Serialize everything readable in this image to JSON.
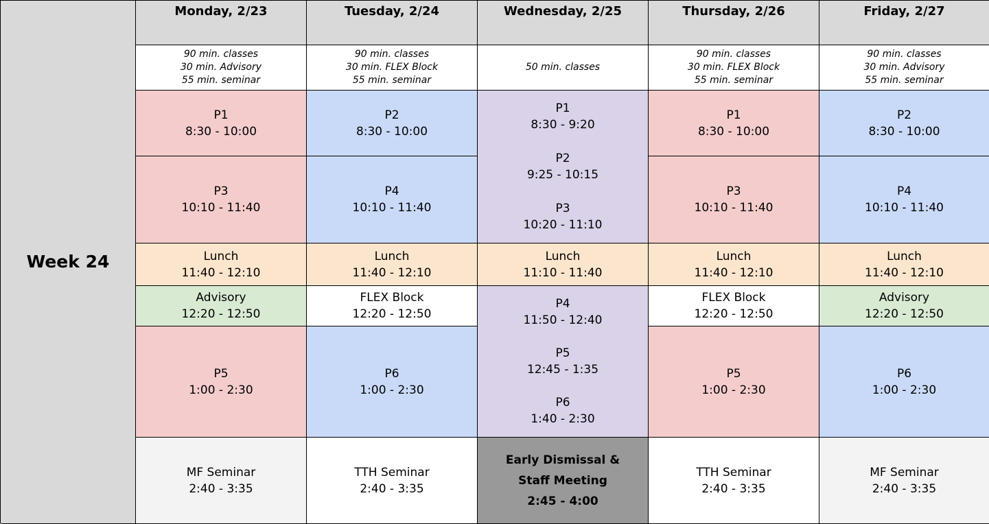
{
  "week_label": "Week 24",
  "days": [
    {
      "header": "Monday, 2/23",
      "notes": [
        "90 min. classes",
        "30 min. Advisory",
        "55 min. seminar"
      ]
    },
    {
      "header": "Tuesday, 2/24",
      "notes": [
        "90 min. classes",
        "30 min. FLEX Block",
        "55 min. seminar"
      ]
    },
    {
      "header": "Wednesday, 2/25",
      "notes": [
        "50 min. classes"
      ]
    },
    {
      "header": "Thursday, 2/26",
      "notes": [
        "90 min. classes",
        "30 min. FLEX Block",
        "55 min. seminar"
      ]
    },
    {
      "header": "Friday, 2/27",
      "notes": [
        "90 min. classes",
        "30 min. Advisory",
        "55 min. seminar"
      ]
    }
  ],
  "monday": {
    "p1": {
      "name": "P1",
      "time": "8:30 - 10:00"
    },
    "p3": {
      "name": "P3",
      "time": "10:10 - 11:40"
    },
    "lunch": {
      "name": "Lunch",
      "time": "11:40 - 12:10"
    },
    "mid": {
      "name": "Advisory",
      "time": "12:20 - 12:50"
    },
    "p5": {
      "name": "P5",
      "time": "1:00 - 2:30"
    },
    "seminar": {
      "name": "MF Seminar",
      "time": "2:40 - 3:35"
    }
  },
  "tuesday": {
    "p2": {
      "name": "P2",
      "time": "8:30 - 10:00"
    },
    "p4": {
      "name": "P4",
      "time": "10:10 - 11:40"
    },
    "lunch": {
      "name": "Lunch",
      "time": "11:40 - 12:10"
    },
    "mid": {
      "name": "FLEX Block",
      "time": "12:20 - 12:50"
    },
    "p6": {
      "name": "P6",
      "time": "1:00 - 2:30"
    },
    "seminar": {
      "name": "TTH Seminar",
      "time": "2:40 - 3:35"
    }
  },
  "wednesday": {
    "morning": [
      {
        "name": "P1",
        "time": "8:30 - 9:20"
      },
      {
        "name": "P2",
        "time": "9:25 - 10:15"
      },
      {
        "name": "P3",
        "time": "10:20 - 11:10"
      }
    ],
    "lunch": {
      "name": "Lunch",
      "time": "11:10 - 11:40"
    },
    "afternoon": [
      {
        "name": "P4",
        "time": "11:50 - 12:40"
      },
      {
        "name": "P5",
        "time": "12:45 - 1:35"
      },
      {
        "name": "P6",
        "time": "1:40 - 2:30"
      }
    ],
    "dismissal": {
      "line1": "Early Dismissal &",
      "line2": "Staff Meeting",
      "time": "2:45 - 4:00"
    }
  },
  "thursday": {
    "p1": {
      "name": "P1",
      "time": "8:30 - 10:00"
    },
    "p3": {
      "name": "P3",
      "time": "10:10 - 11:40"
    },
    "lunch": {
      "name": "Lunch",
      "time": "11:40 - 12:10"
    },
    "mid": {
      "name": "FLEX Block",
      "time": "12:20 - 12:50"
    },
    "p5": {
      "name": "P5",
      "time": "1:00 - 2:30"
    },
    "seminar": {
      "name": "TTH Seminar",
      "time": "2:40 - 3:35"
    }
  },
  "friday": {
    "p2": {
      "name": "P2",
      "time": "8:30 - 10:00"
    },
    "p4": {
      "name": "P4",
      "time": "10:10 - 11:40"
    },
    "lunch": {
      "name": "Lunch",
      "time": "11:40 - 12:10"
    },
    "mid": {
      "name": "Advisory",
      "time": "12:20 - 12:50"
    },
    "p6": {
      "name": "P6",
      "time": "1:00 - 2:30"
    },
    "seminar": {
      "name": "MF Seminar",
      "time": "2:40 - 3:35"
    }
  },
  "colors": {
    "header_gray": "#d9d9d9",
    "odd_period_red": "#f4cccc",
    "even_period_blue": "#c9daf8",
    "wednesday_purple": "#d9d2e9",
    "lunch_orange": "#fce5cd",
    "advisory_green": "#d9ead3",
    "dismissal_gray": "#999999"
  }
}
